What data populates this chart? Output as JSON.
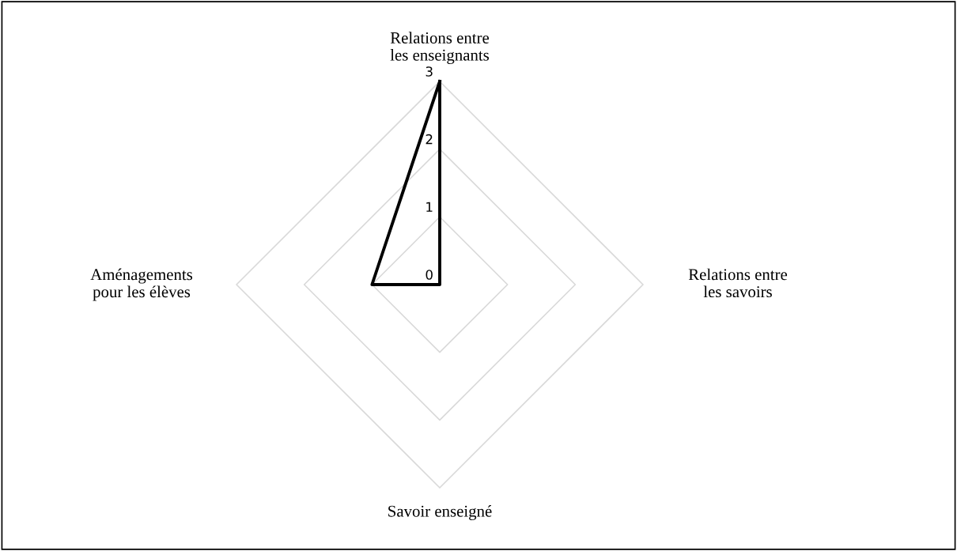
{
  "chart_data": {
    "type": "radar",
    "categories": [
      "Relations entre les enseignants",
      "Relations entre les savoirs",
      "Savoir enseigné",
      "Aménagements pour les élèves"
    ],
    "series": [
      {
        "color": "#000000",
        "values": [
          3,
          0,
          0,
          1
        ]
      }
    ],
    "ylim": [
      0,
      3
    ],
    "yticks": [
      0,
      1,
      2,
      3
    ],
    "grid": true
  }
}
